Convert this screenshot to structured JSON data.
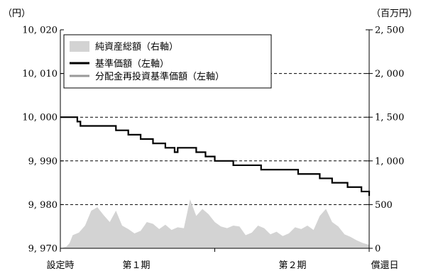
{
  "chart_data": {
    "type": "line",
    "left_axis": {
      "unit": "（円）",
      "ylim": [
        9970,
        10020
      ],
      "ticks": [
        9970,
        9980,
        9990,
        10000,
        10010,
        10020
      ],
      "tick_labels": [
        "9, 970",
        "9, 980",
        "9, 990",
        "10, 000",
        "10, 010",
        "10, 020"
      ]
    },
    "right_axis": {
      "unit": "（百万円）",
      "ylim": [
        0,
        2500
      ],
      "ticks": [
        0,
        500,
        1000,
        1500,
        2000,
        2500
      ],
      "tick_labels": [
        "0",
        "500",
        "1, 000",
        "1, 500",
        "2, 000",
        "2, 500"
      ]
    },
    "x_categories": [
      "設定時",
      "第１期",
      "第２期",
      "償還日"
    ],
    "grid": "dashed horizontal",
    "legend_position": "top-left",
    "legend": [
      {
        "label": "純資産総額（右軸）",
        "kind": "area",
        "color": "#d3d3d3"
      },
      {
        "label": "基準価額（左軸）",
        "kind": "line",
        "color": "#000000"
      },
      {
        "label": "分配金再投資基準価額（左軸）",
        "kind": "line",
        "color": "#999999"
      }
    ],
    "series": [
      {
        "name": "基準価額（左軸）",
        "axis": "left",
        "x": [
          0,
          0.045,
          0.055,
          0.065,
          0.12,
          0.18,
          0.22,
          0.26,
          0.3,
          0.34,
          0.37,
          0.38,
          0.4,
          0.44,
          0.47,
          0.5,
          0.56,
          0.61,
          0.65,
          0.72,
          0.77,
          0.8,
          0.84,
          0.88,
          0.93,
          0.975,
          0.985,
          1.0
        ],
        "values": [
          10000,
          10000,
          9999,
          9998,
          9998,
          9997,
          9996,
          9995,
          9994,
          9993,
          9992,
          9993,
          9993,
          9992,
          9991,
          9990,
          9989,
          9989,
          9988,
          9988,
          9987,
          9987,
          9986,
          9985,
          9984,
          9983,
          9983,
          9982
        ]
      },
      {
        "name": "純資産総額（右軸）",
        "axis": "right",
        "x": [
          0,
          0.02,
          0.03,
          0.04,
          0.06,
          0.08,
          0.1,
          0.12,
          0.14,
          0.16,
          0.18,
          0.2,
          0.22,
          0.24,
          0.26,
          0.28,
          0.3,
          0.32,
          0.34,
          0.36,
          0.38,
          0.4,
          0.42,
          0.44,
          0.46,
          0.48,
          0.5,
          0.52,
          0.54,
          0.56,
          0.58,
          0.6,
          0.62,
          0.64,
          0.66,
          0.68,
          0.7,
          0.72,
          0.74,
          0.76,
          0.78,
          0.8,
          0.82,
          0.84,
          0.86,
          0.88,
          0.9,
          0.92,
          0.94,
          0.96,
          0.98,
          1.0
        ],
        "values": [
          0,
          20,
          60,
          150,
          180,
          260,
          430,
          470,
          380,
          300,
          430,
          260,
          220,
          170,
          200,
          300,
          280,
          220,
          270,
          210,
          240,
          230,
          560,
          370,
          450,
          390,
          300,
          250,
          230,
          260,
          250,
          150,
          180,
          260,
          230,
          160,
          190,
          140,
          170,
          240,
          220,
          260,
          210,
          370,
          450,
          300,
          250,
          160,
          130,
          90,
          60,
          40
        ]
      }
    ]
  }
}
